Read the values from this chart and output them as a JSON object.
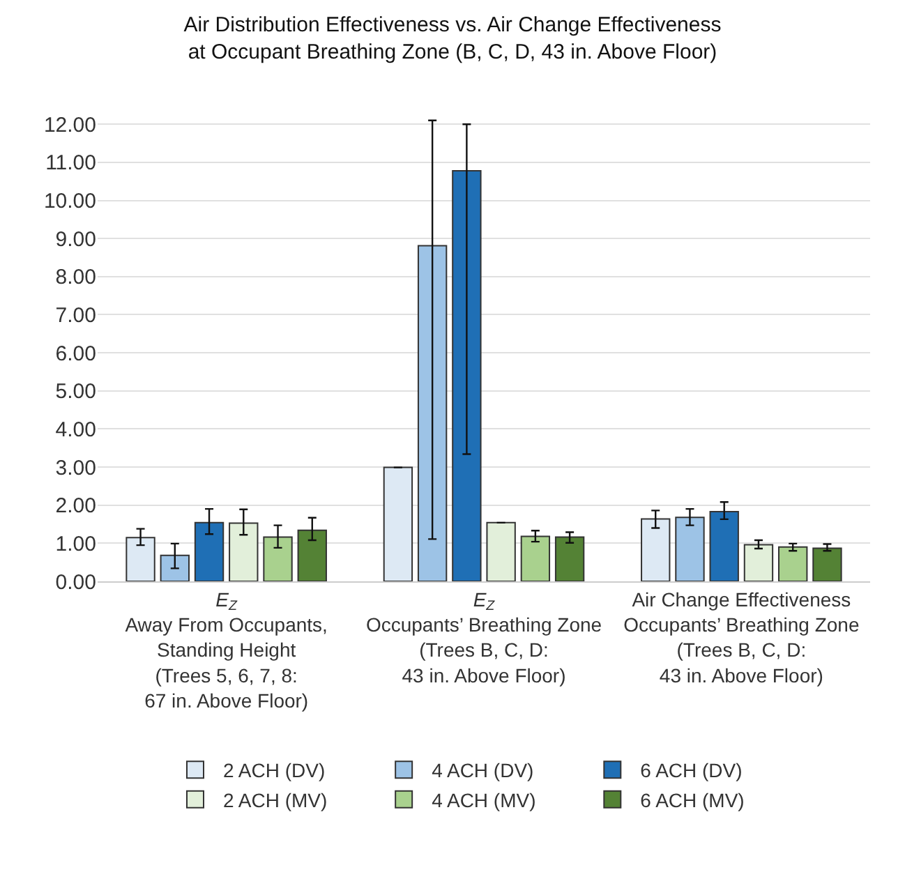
{
  "chart_data": {
    "type": "bar",
    "title": "Air Distribution Effectiveness vs. Air Change Effectiveness\nat Occupant Breathing Zone (B, C, D, 43 in. Above Floor)",
    "categories": [
      "E$_{Z}$\nAway From Occupants,\nStanding Height\n(Trees 5, 6, 7, 8:\n67 in. Above Floor)",
      "E$_{Z}$\nOccupants’ Breathing Zone\n(Trees B, C, D:\n43 in. Above Floor)",
      "Air Change Effectiveness\nOccupants’ Breathing Zone\n(Trees B, C, D:\n43 in. Above Floor)"
    ],
    "series": [
      {
        "name": "2 ACH (DV)",
        "color": "#dde9f4",
        "values": [
          1.15,
          2.99,
          1.64
        ],
        "errors": [
          [
            0.95,
            1.38
          ],
          null,
          [
            1.4,
            1.86
          ]
        ]
      },
      {
        "name": "4 ACH (DV)",
        "color": "#9dc3e6",
        "values": [
          0.68,
          8.81,
          1.68
        ],
        "errors": [
          [
            0.34,
            0.99
          ],
          [
            1.11,
            12.1
          ],
          [
            1.47,
            1.9
          ]
        ]
      },
      {
        "name": "6 ACH (DV)",
        "color": "#1f6fb5",
        "values": [
          1.54,
          10.78,
          1.83
        ],
        "errors": [
          [
            1.24,
            1.9
          ],
          [
            3.34,
            12.0
          ],
          [
            1.63,
            2.08
          ]
        ]
      },
      {
        "name": "2 ACH (MV)",
        "color": "#e2efda",
        "values": [
          1.53,
          1.54,
          0.96
        ],
        "errors": [
          [
            1.22,
            1.89
          ],
          null,
          [
            0.86,
            1.08
          ]
        ]
      },
      {
        "name": "4 ACH (MV)",
        "color": "#a9d18e",
        "values": [
          1.16,
          1.18,
          0.9
        ],
        "errors": [
          [
            0.88,
            1.47
          ],
          [
            1.04,
            1.33
          ],
          [
            0.8,
            0.99
          ]
        ]
      },
      {
        "name": "6 ACH (MV)",
        "color": "#548235",
        "values": [
          1.34,
          1.16,
          0.87
        ],
        "errors": [
          [
            1.08,
            1.67
          ],
          [
            1.01,
            1.29
          ],
          [
            0.8,
            0.98
          ]
        ]
      }
    ],
    "ylim": [
      0,
      12.15
    ],
    "yticks": [
      {
        "value": 0,
        "label": "0.00"
      },
      {
        "value": 1,
        "label": "1.00"
      },
      {
        "value": 2,
        "label": "2.00"
      },
      {
        "value": 3,
        "label": "3.00"
      },
      {
        "value": 4,
        "label": "4.00"
      },
      {
        "value": 5,
        "label": "5.00"
      },
      {
        "value": 6,
        "label": "6.00"
      },
      {
        "value": 7,
        "label": "7.00"
      },
      {
        "value": 8,
        "label": "8.00"
      },
      {
        "value": 9,
        "label": "9.00"
      },
      {
        "value": 10,
        "label": "10.00"
      },
      {
        "value": 11,
        "label": "11.00"
      },
      {
        "value": 12,
        "label": "12.00"
      }
    ],
    "grid": "y",
    "legend": "bottom"
  }
}
